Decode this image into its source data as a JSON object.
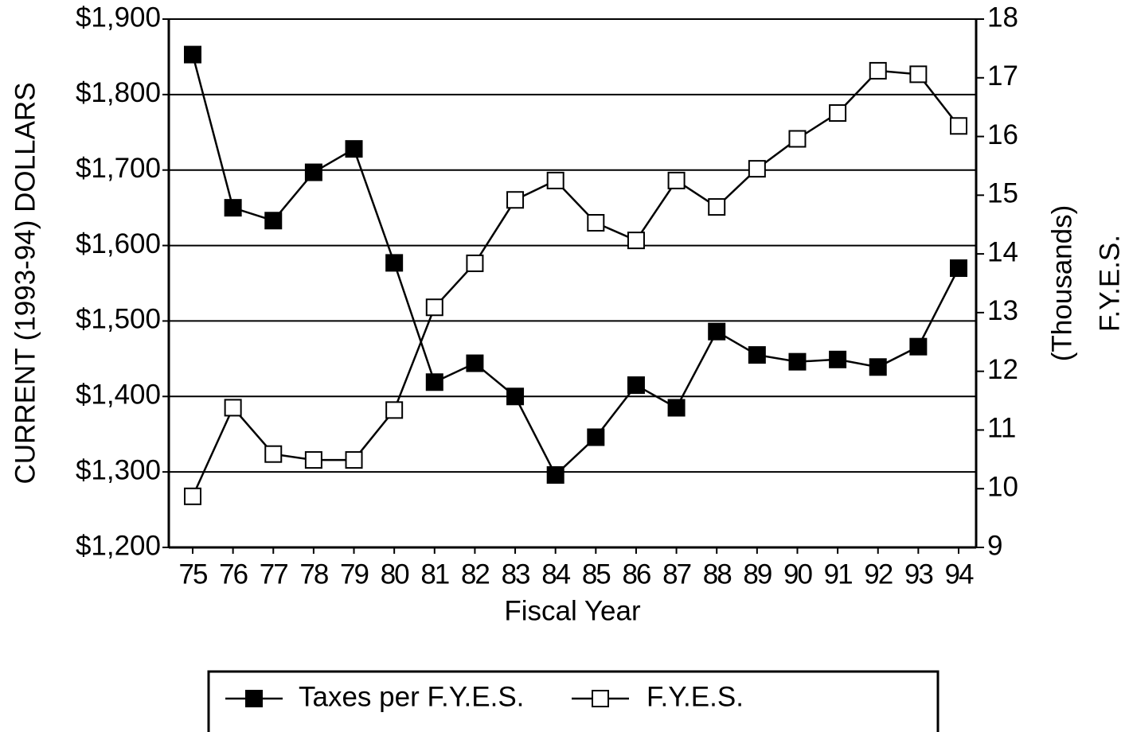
{
  "chart_data": {
    "type": "line",
    "x_label": "Fiscal Year",
    "y_label": "CURRENT (1993-94) DOLLARS",
    "y2_label": [
      "(Thousands)",
      "F.Y.E.S."
    ],
    "categories": [
      "75",
      "76",
      "77",
      "78",
      "79",
      "80",
      "81",
      "82",
      "83",
      "84",
      "85",
      "86",
      "87",
      "88",
      "89",
      "90",
      "91",
      "92",
      "93",
      "94"
    ],
    "series": [
      {
        "name": "Taxes per F.Y.E.S.",
        "color": "#000000",
        "marker": "filled-square",
        "values": [
          1853,
          1650,
          1633,
          1697,
          1728,
          1577,
          1419,
          1444,
          1400,
          1296,
          1346,
          1415,
          1385,
          1486,
          1455,
          1446,
          1449,
          1439,
          1466,
          1570
        ]
      },
      {
        "name": "F.Y.E.S.",
        "color": "#000000",
        "marker": "open-square",
        "axis": "y2",
        "values": [
          9.87,
          11.38,
          10.59,
          10.49,
          10.49,
          11.34,
          13.09,
          13.84,
          14.92,
          15.25,
          14.53,
          14.23,
          15.25,
          14.8,
          15.45,
          15.96,
          16.4,
          17.12,
          17.06,
          16.18
        ]
      }
    ],
    "ylim": [
      1200,
      1900
    ],
    "yticks": [
      {
        "value": 1200,
        "label": "$1,200"
      },
      {
        "value": 1300,
        "label": "$1,300"
      },
      {
        "value": 1400,
        "label": "$1,400"
      },
      {
        "value": 1500,
        "label": "$1,500"
      },
      {
        "value": 1600,
        "label": "$1,600"
      },
      {
        "value": 1700,
        "label": "$1,700"
      },
      {
        "value": 1800,
        "label": "$1,800"
      },
      {
        "value": 1900,
        "label": "$1,900"
      }
    ],
    "y2lim": [
      9,
      18
    ],
    "y2ticks": [
      9,
      10,
      11,
      12,
      13,
      14,
      15,
      16,
      17,
      18
    ],
    "grid": true,
    "legend": "bottom"
  }
}
